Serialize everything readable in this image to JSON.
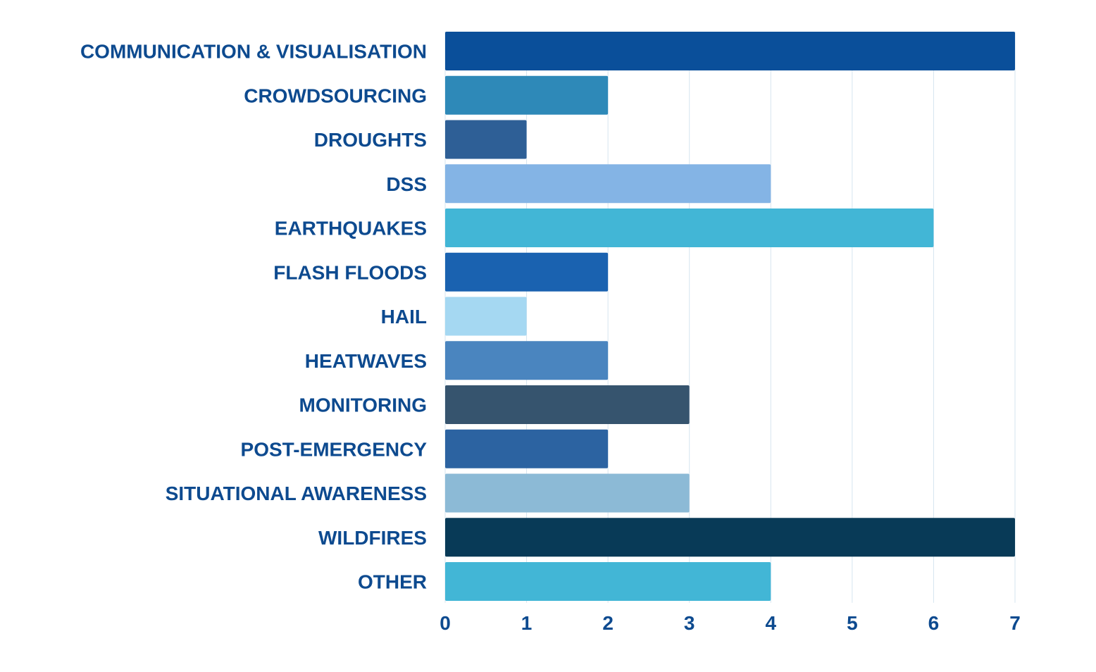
{
  "chart_data": {
    "type": "bar",
    "orientation": "horizontal",
    "title": "",
    "xlabel": "",
    "ylabel": "",
    "categories": [
      "COMMUNICATION & VISUALISATION",
      "CROWDSOURCING",
      "DROUGHTS",
      "DSS",
      "EARTHQUAKES",
      "FLASH FLOODS",
      "HAIL",
      "HEATWAVES",
      "MONITORING",
      "POST-EMERGENCY",
      "SITUATIONAL AWARENESS",
      "WILDFIRES",
      "OTHER"
    ],
    "values": [
      7,
      2,
      1,
      4,
      6,
      2,
      1,
      2,
      3,
      2,
      3,
      7,
      4
    ],
    "colors": [
      "#0a4f9a",
      "#2e89b8",
      "#2e5f96",
      "#84b4e5",
      "#42b6d6",
      "#1a62b0",
      "#a5d8f2",
      "#4a85bf",
      "#36546e",
      "#2c63a1",
      "#8cbad6",
      "#083a57",
      "#42b6d6"
    ],
    "xlim": [
      0,
      7
    ],
    "xticks": [
      "0",
      "1",
      "2",
      "3",
      "4",
      "5",
      "6",
      "7"
    ],
    "grid": true,
    "label_color": "#0d4a8f",
    "grid_color": "#d6e4ef"
  }
}
